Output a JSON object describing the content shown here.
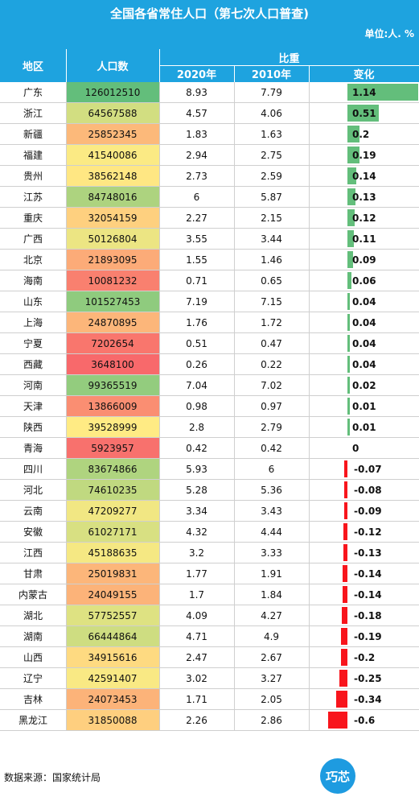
{
  "header": {
    "title": "全国各省常住人口（第七次人口普查)",
    "unit": "单位:人. %"
  },
  "columns": {
    "region": "地区",
    "population": "人口数",
    "share": "比重",
    "y2020": "2020年",
    "y2010": "2010年",
    "change": "变化"
  },
  "colors": {
    "header_bg": "#1ea3df",
    "bar_positive": "#63be7b",
    "bar_negative": "#f8151c",
    "scale_low": "#f8696b",
    "scale_mid": "#ffeb84",
    "scale_high": "#63be7b"
  },
  "chart_data": {
    "type": "table",
    "title": "全国各省常住人口（第七次人口普查)",
    "rows": [
      {
        "region": "广东",
        "population": 126012510,
        "y2020": "8.93",
        "y2010": "7.79",
        "change": "1.14"
      },
      {
        "region": "浙江",
        "population": 64567588,
        "y2020": "4.57",
        "y2010": "4.06",
        "change": "0.51"
      },
      {
        "region": "新疆",
        "population": 25852345,
        "y2020": "1.83",
        "y2010": "1.63",
        "change": "0.2"
      },
      {
        "region": "福建",
        "population": 41540086,
        "y2020": "2.94",
        "y2010": "2.75",
        "change": "0.19"
      },
      {
        "region": "贵州",
        "population": 38562148,
        "y2020": "2.73",
        "y2010": "2.59",
        "change": "0.14"
      },
      {
        "region": "江苏",
        "population": 84748016,
        "y2020": "6",
        "y2010": "5.87",
        "change": "0.13"
      },
      {
        "region": "重庆",
        "population": 32054159,
        "y2020": "2.27",
        "y2010": "2.15",
        "change": "0.12"
      },
      {
        "region": "广西",
        "population": 50126804,
        "y2020": "3.55",
        "y2010": "3.44",
        "change": "0.11"
      },
      {
        "region": "北京",
        "population": 21893095,
        "y2020": "1.55",
        "y2010": "1.46",
        "change": "0.09"
      },
      {
        "region": "海南",
        "population": 10081232,
        "y2020": "0.71",
        "y2010": "0.65",
        "change": "0.06"
      },
      {
        "region": "山东",
        "population": 101527453,
        "y2020": "7.19",
        "y2010": "7.15",
        "change": "0.04"
      },
      {
        "region": "上海",
        "population": 24870895,
        "y2020": "1.76",
        "y2010": "1.72",
        "change": "0.04"
      },
      {
        "region": "宁夏",
        "population": 7202654,
        "y2020": "0.51",
        "y2010": "0.47",
        "change": "0.04"
      },
      {
        "region": "西藏",
        "population": 3648100,
        "y2020": "0.26",
        "y2010": "0.22",
        "change": "0.04"
      },
      {
        "region": "河南",
        "population": 99365519,
        "y2020": "7.04",
        "y2010": "7.02",
        "change": "0.02"
      },
      {
        "region": "天津",
        "population": 13866009,
        "y2020": "0.98",
        "y2010": "0.97",
        "change": "0.01"
      },
      {
        "region": "陕西",
        "population": 39528999,
        "y2020": "2.8",
        "y2010": "2.79",
        "change": "0.01"
      },
      {
        "region": "青海",
        "population": 5923957,
        "y2020": "0.42",
        "y2010": "0.42",
        "change": "0"
      },
      {
        "region": "四川",
        "population": 83674866,
        "y2020": "5.93",
        "y2010": "6",
        "change": "-0.07"
      },
      {
        "region": "河北",
        "population": 74610235,
        "y2020": "5.28",
        "y2010": "5.36",
        "change": "-0.08"
      },
      {
        "region": "云南",
        "population": 47209277,
        "y2020": "3.34",
        "y2010": "3.43",
        "change": "-0.09"
      },
      {
        "region": "安徽",
        "population": 61027171,
        "y2020": "4.32",
        "y2010": "4.44",
        "change": "-0.12"
      },
      {
        "region": "江西",
        "population": 45188635,
        "y2020": "3.2",
        "y2010": "3.33",
        "change": "-0.13"
      },
      {
        "region": "甘肃",
        "population": 25019831,
        "y2020": "1.77",
        "y2010": "1.91",
        "change": "-0.14"
      },
      {
        "region": "内蒙古",
        "population": 24049155,
        "y2020": "1.7",
        "y2010": "1.84",
        "change": "-0.14"
      },
      {
        "region": "湖北",
        "population": 57752557,
        "y2020": "4.09",
        "y2010": "4.27",
        "change": "-0.18"
      },
      {
        "region": "湖南",
        "population": 66444864,
        "y2020": "4.71",
        "y2010": "4.9",
        "change": "-0.19"
      },
      {
        "region": "山西",
        "population": 34915616,
        "y2020": "2.47",
        "y2010": "2.67",
        "change": "-0.2"
      },
      {
        "region": "辽宁",
        "population": 42591407,
        "y2020": "3.02",
        "y2010": "3.27",
        "change": "-0.25"
      },
      {
        "region": "吉林",
        "population": 24073453,
        "y2020": "1.71",
        "y2010": "2.05",
        "change": "-0.34"
      },
      {
        "region": "黑龙江",
        "population": 31850088,
        "y2020": "2.26",
        "y2010": "2.86",
        "change": "-0.6"
      }
    ]
  },
  "footer": {
    "source": "数据来源：国家统计局",
    "logo_text": "巧芯"
  }
}
